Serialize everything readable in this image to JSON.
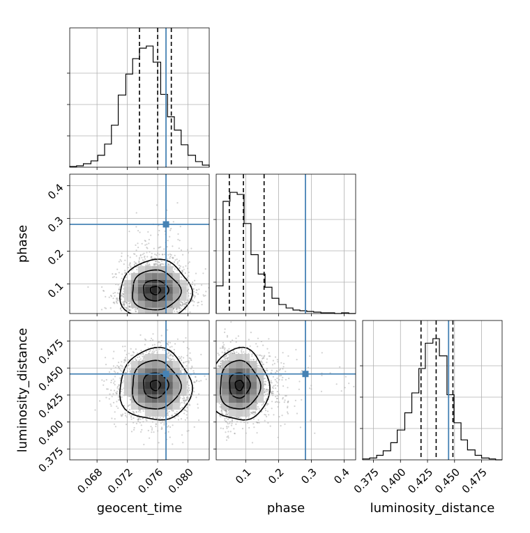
{
  "chart_data": {
    "type": "corner",
    "parameters": [
      "geocent_time",
      "phase",
      "luminosity_distance"
    ],
    "truths": {
      "geocent_time": 0.0771,
      "phase": 0.282,
      "luminosity_distance": 0.4445
    },
    "truth_color": "#4682b4",
    "quantiles_color": "#000000",
    "grid": true,
    "ranges": {
      "geocent_time": [
        0.0644,
        0.0828
      ],
      "phase": [
        0.01,
        0.435
      ],
      "luminosity_distance": [
        0.365,
        0.494
      ]
    },
    "ticks": {
      "geocent_time": [
        "0.068",
        "0.072",
        "0.076",
        "0.080"
      ],
      "phase": [
        "0.1",
        "0.2",
        "0.3",
        "0.4"
      ],
      "luminosity_distance": [
        "0.375",
        "0.400",
        "0.425",
        "0.450",
        "0.475"
      ]
    },
    "histograms": {
      "geocent_time": {
        "bin_edges": [
          0.0644,
          0.0653,
          0.0662,
          0.0672,
          0.0681,
          0.069,
          0.0699,
          0.0708,
          0.0718,
          0.0727,
          0.0736,
          0.0745,
          0.0754,
          0.0764,
          0.0773,
          0.0782,
          0.0791,
          0.08,
          0.081,
          0.0819,
          0.0828
        ],
        "counts": [
          1,
          2,
          5,
          9,
          17,
          33,
          60,
          103,
          133,
          155,
          170,
          173,
          150,
          104,
          72,
          53,
          32,
          17,
          8,
          3
        ],
        "quantiles": [
          0.0736,
          0.076,
          0.0778
        ]
      },
      "phase": {
        "bin_edges": [
          0.01,
          0.031,
          0.052,
          0.074,
          0.095,
          0.116,
          0.138,
          0.159,
          0.18,
          0.201,
          0.223,
          0.244,
          0.265,
          0.286,
          0.307,
          0.329,
          0.35,
          0.371,
          0.392,
          0.414,
          0.435
        ],
        "counts": [
          40,
          162,
          175,
          172,
          130,
          85,
          57,
          38,
          22,
          13,
          8,
          5,
          4,
          3,
          2,
          1,
          1,
          0,
          1,
          0
        ],
        "quantiles": [
          0.05,
          0.093,
          0.156
        ]
      },
      "luminosity_distance": {
        "bin_edges": [
          0.365,
          0.3715,
          0.378,
          0.384,
          0.391,
          0.397,
          0.404,
          0.4105,
          0.417,
          0.423,
          0.43,
          0.436,
          0.443,
          0.4495,
          0.456,
          0.462,
          0.469,
          0.475,
          0.482,
          0.488,
          0.494
        ],
        "counts": [
          1,
          2,
          5,
          10,
          19,
          33,
          52,
          74,
          101,
          129,
          134,
          115,
          72,
          41,
          22,
          11,
          5,
          2,
          1,
          0
        ],
        "quantiles": [
          0.419,
          0.433,
          0.4485
        ]
      }
    },
    "joint_distributions": [
      {
        "x": "geocent_time",
        "y": "phase",
        "mean_x": 0.0757,
        "mean_y": 0.085,
        "sd_x": 0.0022,
        "sd_y": 0.048,
        "mode_y": 0.07
      },
      {
        "x": "geocent_time",
        "y": "luminosity_distance",
        "mean_x": 0.0757,
        "mean_y": 0.434,
        "sd_x": 0.0022,
        "sd_y": 0.0155
      },
      {
        "x": "phase",
        "y": "luminosity_distance",
        "mean_x": 0.085,
        "mean_y": 0.434,
        "sd_x": 0.048,
        "sd_y": 0.0155,
        "mode_x": 0.07
      }
    ]
  }
}
